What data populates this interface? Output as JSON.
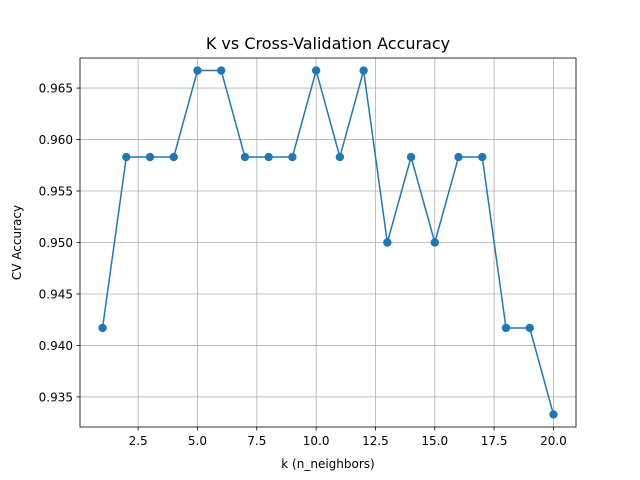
{
  "chart_data": {
    "type": "line",
    "title": "K vs Cross-Validation Accuracy",
    "xlabel": "k (n_neighbors)",
    "ylabel": "CV Accuracy",
    "xlim": [
      0.05,
      20.95
    ],
    "ylim": [
      0.93208,
      0.96792
    ],
    "xticks": [
      2.5,
      5.0,
      7.5,
      10.0,
      12.5,
      15.0,
      17.5,
      20.0
    ],
    "xtick_labels": [
      "2.5",
      "5.0",
      "7.5",
      "10.0",
      "12.5",
      "15.0",
      "17.5",
      "20.0"
    ],
    "yticks": [
      0.935,
      0.94,
      0.945,
      0.95,
      0.955,
      0.96,
      0.965
    ],
    "ytick_labels": [
      "0.935",
      "0.940",
      "0.945",
      "0.950",
      "0.955",
      "0.960",
      "0.965"
    ],
    "grid": true,
    "color": "#1f77b4",
    "marker": "circle",
    "series": [
      {
        "x": [
          1,
          2,
          3,
          4,
          5,
          6,
          7,
          8,
          9,
          10,
          11,
          12,
          13,
          14,
          15,
          16,
          17,
          18,
          19,
          20
        ],
        "values": [
          0.9417,
          0.9583,
          0.9583,
          0.9583,
          0.9667,
          0.9667,
          0.9583,
          0.9583,
          0.9583,
          0.9667,
          0.9583,
          0.9667,
          0.95,
          0.9583,
          0.95,
          0.9583,
          0.9583,
          0.9417,
          0.9417,
          0.9333
        ]
      }
    ]
  }
}
